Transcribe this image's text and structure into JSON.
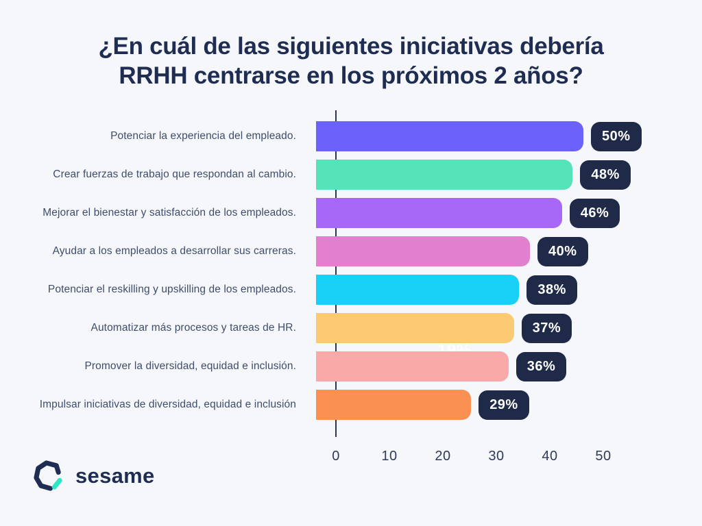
{
  "page": {
    "background": "#f5f7fa"
  },
  "title": {
    "line1": "¿En cuál de las siguientes iniciativas debería",
    "line2": "RRHH centrarse en los próximos 2 años?",
    "color": "#1f2d52"
  },
  "chart_data": {
    "type": "bar",
    "orientation": "horizontal",
    "title": "¿En cuál de las siguientes iniciativas debería RRHH centrarse en los próximos 2 años?",
    "categories": [
      "Potenciar la experiencia del empleado.",
      "Crear fuerzas de trabajo que respondan al cambio.",
      "Mejorar el bienestar y satisfacción de los empleados.",
      "Ayudar a los empleados a desarrollar sus carreras.",
      "Potenciar el reskilling y upskilling de los empleados.",
      "Automatizar más procesos y tareas de HR.",
      "Promover la diversidad, equidad e inclusión.",
      "Impulsar iniciativas de diversidad, equidad e inclusión"
    ],
    "values": [
      50,
      48,
      46,
      40,
      38,
      37,
      36,
      29
    ],
    "value_labels": [
      "50%",
      "48%",
      "46%",
      "40%",
      "38%",
      "37%",
      "36%",
      "29%"
    ],
    "bar_colors": [
      "#6B62FB",
      "#55E3B9",
      "#A868F7",
      "#E180CF",
      "#19D1F7",
      "#FDCA74",
      "#F8A9A8",
      "#FA9052"
    ],
    "badge_color": "#1f2a48",
    "badge_text_color": "#ffffff",
    "xlabel": "",
    "ylabel": "",
    "x_ticks": [
      "0",
      "10",
      "20",
      "30",
      "40",
      "50"
    ],
    "x_tick_values": [
      0,
      10,
      20,
      30,
      40,
      50
    ],
    "xlim": [
      0,
      55
    ],
    "grid": false,
    "legend": false,
    "axis_color": "#2b3654"
  },
  "ghost_value": "19%",
  "footer": {
    "logo_text": "sesame",
    "logo_navy": "#1f2d52",
    "logo_teal": "#2EE6C4"
  }
}
